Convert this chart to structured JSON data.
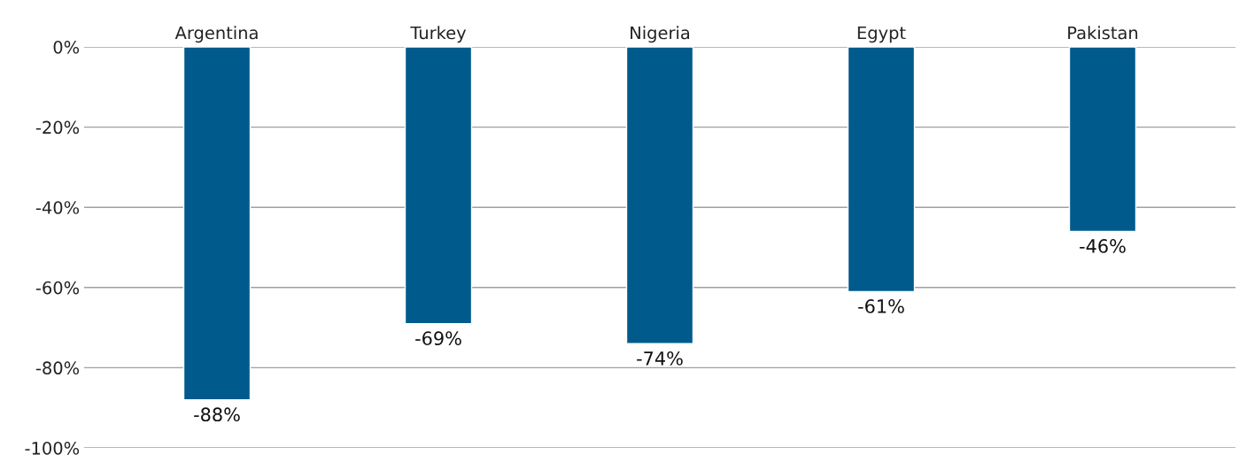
{
  "chart_data": {
    "type": "bar",
    "categories": [
      "Argentina",
      "Turkey",
      "Nigeria",
      "Egypt",
      "Pakistan"
    ],
    "values": [
      -88,
      -69,
      -74,
      -61,
      -46
    ],
    "value_labels": [
      "-88%",
      "-69%",
      "-74%",
      "-61%",
      "-46%"
    ],
    "color": "#005a8c",
    "ylim": [
      -100,
      0
    ],
    "yticks": [
      {
        "value": -100,
        "label": "-100%"
      },
      {
        "value": -80,
        "label": "-80%"
      },
      {
        "value": -60,
        "label": "-60%"
      },
      {
        "value": -40,
        "label": "-40%"
      },
      {
        "value": -20,
        "label": "-20%"
      },
      {
        "value": 0,
        "label": "0%"
      }
    ],
    "grid": "y",
    "legend": false
  }
}
